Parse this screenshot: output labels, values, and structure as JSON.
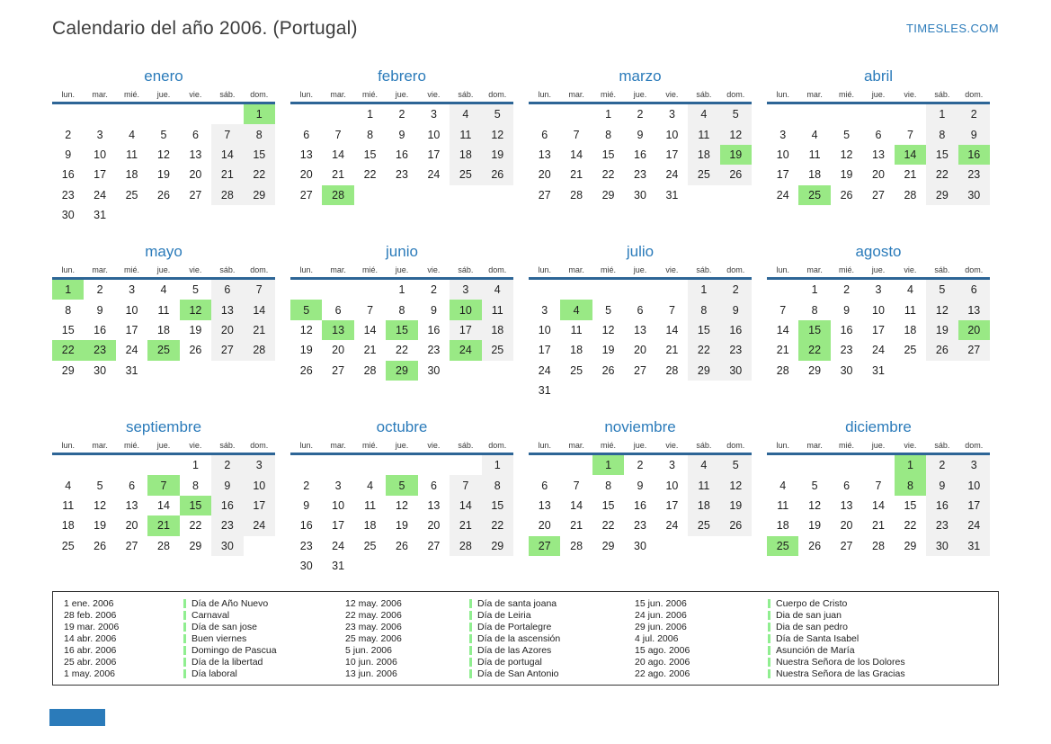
{
  "header": {
    "title": "Calendario del año 2006. (Portugal)",
    "brand": "TIMESLES.COM"
  },
  "colors": {
    "accent_blue": "#2b7bba",
    "header_rule_blue": "#2d6596",
    "holiday_green": "#99e985",
    "weekend_gray": "#f1f1f1",
    "legend_marker_green": "#90ee90"
  },
  "calendar": {
    "day_headers": [
      "lun.",
      "mar.",
      "mié.",
      "jue.",
      "vie.",
      "sáb.",
      "dom."
    ],
    "months": [
      {
        "name": "enero",
        "first_col": 6,
        "days": 31,
        "holidays": [
          1
        ]
      },
      {
        "name": "febrero",
        "first_col": 2,
        "days": 28,
        "holidays": [
          28
        ]
      },
      {
        "name": "marzo",
        "first_col": 2,
        "days": 31,
        "holidays": [
          19
        ]
      },
      {
        "name": "abril",
        "first_col": 5,
        "days": 30,
        "holidays": [
          14,
          16,
          25
        ]
      },
      {
        "name": "mayo",
        "first_col": 0,
        "days": 31,
        "holidays": [
          1,
          12,
          22,
          23,
          25
        ]
      },
      {
        "name": "junio",
        "first_col": 3,
        "days": 30,
        "holidays": [
          5,
          10,
          13,
          15,
          24,
          29
        ]
      },
      {
        "name": "julio",
        "first_col": 5,
        "days": 31,
        "holidays": [
          4
        ]
      },
      {
        "name": "agosto",
        "first_col": 1,
        "days": 31,
        "holidays": [
          15,
          20,
          22
        ]
      },
      {
        "name": "septiembre",
        "first_col": 4,
        "days": 30,
        "holidays": [
          7,
          15,
          21
        ]
      },
      {
        "name": "octubre",
        "first_col": 6,
        "days": 31,
        "holidays": [
          5
        ]
      },
      {
        "name": "noviembre",
        "first_col": 2,
        "days": 30,
        "holidays": [
          1,
          27
        ]
      },
      {
        "name": "diciembre",
        "first_col": 4,
        "days": 31,
        "holidays": [
          1,
          8,
          25
        ]
      }
    ]
  },
  "legend": {
    "rows_per_column": 7,
    "entries": [
      {
        "date": "1 ene. 2006",
        "name": "Día de Año Nuevo"
      },
      {
        "date": "28 feb. 2006",
        "name": "Carnaval"
      },
      {
        "date": "19 mar. 2006",
        "name": "Día de san jose"
      },
      {
        "date": "14 abr. 2006",
        "name": "Buen viernes"
      },
      {
        "date": "16 abr. 2006",
        "name": "Domingo de Pascua"
      },
      {
        "date": "25 abr. 2006",
        "name": "Día de la libertad"
      },
      {
        "date": "1 may. 2006",
        "name": "Día laboral"
      },
      {
        "date": "12 may. 2006",
        "name": "Día de santa joana"
      },
      {
        "date": "22 may. 2006",
        "name": "Día de Leiria"
      },
      {
        "date": "23 may. 2006",
        "name": "Día de Portalegre"
      },
      {
        "date": "25 may. 2006",
        "name": "Día de la ascensión"
      },
      {
        "date": "5 jun. 2006",
        "name": "Día de las Azores"
      },
      {
        "date": "10 jun. 2006",
        "name": "Día de portugal"
      },
      {
        "date": "13 jun. 2006",
        "name": "Día de San Antonio"
      },
      {
        "date": "15 jun. 2006",
        "name": "Cuerpo de Cristo"
      },
      {
        "date": "24 jun. 2006",
        "name": "Dia de san juan"
      },
      {
        "date": "29 jun. 2006",
        "name": "Dia de san pedro"
      },
      {
        "date": "4 jul. 2006",
        "name": "Día de Santa Isabel"
      },
      {
        "date": "15 ago. 2006",
        "name": "Asunción de María"
      },
      {
        "date": "20 ago. 2006",
        "name": "Nuestra Señora de los Dolores"
      },
      {
        "date": "22 ago. 2006",
        "name": "Nuestra Señora de las Gracias"
      }
    ]
  }
}
